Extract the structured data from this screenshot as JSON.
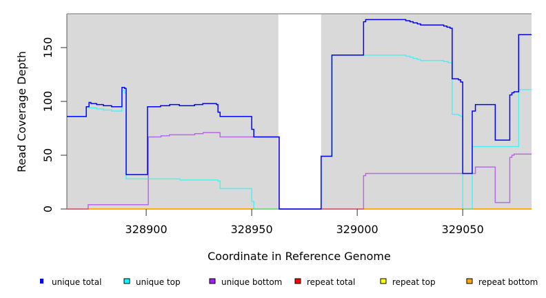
{
  "chart_data": {
    "type": "line",
    "subtype": "step",
    "xlabel": "Coordinate in Reference Genome",
    "ylabel": "Read Coverage Depth",
    "xlim": [
      328862.4,
      329082.6
    ],
    "ylim": [
      0,
      181.4
    ],
    "xticks": [
      328900,
      328950,
      329000,
      329050
    ],
    "yticks": [
      0,
      50,
      100,
      150
    ],
    "covered_regions": [
      [
        328862.4,
        328962.6
      ],
      [
        328982.9,
        329082.6
      ]
    ],
    "legend_position": "bottom",
    "series": [
      {
        "name": "unique total",
        "color": "#0000ff",
        "steps": [
          [
            328862.4,
            86
          ],
          [
            328871.6,
            95
          ],
          [
            328872.9,
            99
          ],
          [
            328873.8,
            98
          ],
          [
            328876.5,
            97
          ],
          [
            328879.7,
            96
          ],
          [
            328883.6,
            95
          ],
          [
            328888.5,
            113
          ],
          [
            328889.8,
            112
          ],
          [
            328890.5,
            32
          ],
          [
            328900.6,
            95
          ],
          [
            328906.8,
            96
          ],
          [
            328911.1,
            97
          ],
          [
            328915.7,
            96
          ],
          [
            328922.9,
            97
          ],
          [
            328926.8,
            98
          ],
          [
            328933.3,
            97
          ],
          [
            328934,
            90
          ],
          [
            328935,
            86
          ],
          [
            328950,
            74
          ],
          [
            328951,
            67
          ],
          [
            328963,
            0
          ],
          [
            328982.9,
            49
          ],
          [
            328988,
            143
          ],
          [
            329003,
            174
          ],
          [
            329004,
            176
          ],
          [
            329023,
            175
          ],
          [
            329025,
            174
          ],
          [
            329026.5,
            173
          ],
          [
            329028.5,
            172
          ],
          [
            329030,
            171
          ],
          [
            329041,
            170
          ],
          [
            329042.5,
            169
          ],
          [
            329044,
            168
          ],
          [
            329045,
            121
          ],
          [
            329048,
            120
          ],
          [
            329049,
            118
          ],
          [
            329050,
            33
          ],
          [
            329054.5,
            91
          ],
          [
            329056,
            97
          ],
          [
            329065.4,
            64
          ],
          [
            329072.3,
            106
          ],
          [
            329073.3,
            108
          ],
          [
            329074.3,
            109
          ],
          [
            329076.5,
            162
          ],
          [
            329082.6,
            162
          ]
        ]
      },
      {
        "name": "unique top",
        "color": "#00ffff",
        "steps": [
          [
            328862.4,
            86
          ],
          [
            328871.6,
            95
          ],
          [
            328872.9,
            94
          ],
          [
            328876.5,
            93
          ],
          [
            328879.7,
            92
          ],
          [
            328883.6,
            91
          ],
          [
            328888.5,
            110
          ],
          [
            328889.8,
            108
          ],
          [
            328890.5,
            28
          ],
          [
            328916,
            27
          ],
          [
            328934,
            26
          ],
          [
            328935,
            19
          ],
          [
            328950,
            7
          ],
          [
            328951,
            0
          ],
          [
            328982.9,
            49
          ],
          [
            328988,
            143
          ],
          [
            329023,
            142
          ],
          [
            329025,
            141
          ],
          [
            329026.5,
            140
          ],
          [
            329028.5,
            139
          ],
          [
            329030,
            138
          ],
          [
            329041,
            137
          ],
          [
            329043,
            136
          ],
          [
            329045,
            88
          ],
          [
            329048,
            87
          ],
          [
            329049,
            86
          ],
          [
            329050,
            0
          ],
          [
            329054.5,
            58
          ],
          [
            329076.5,
            111
          ],
          [
            329082.6,
            111
          ]
        ]
      },
      {
        "name": "unique bottom",
        "color": "#a020f0",
        "steps": [
          [
            328862.4,
            0
          ],
          [
            328872.5,
            4
          ],
          [
            328901,
            67
          ],
          [
            328907,
            68
          ],
          [
            328911,
            69
          ],
          [
            328923,
            70
          ],
          [
            328927,
            71
          ],
          [
            328935,
            67
          ],
          [
            328963,
            0
          ],
          [
            329003,
            31
          ],
          [
            329004,
            33
          ],
          [
            329054.5,
            33
          ],
          [
            329056,
            39
          ],
          [
            329065.4,
            6
          ],
          [
            329072.3,
            48
          ],
          [
            329073.3,
            50
          ],
          [
            329074.3,
            51
          ],
          [
            329082.6,
            51
          ]
        ]
      },
      {
        "name": "repeat total",
        "color": "#ff0000",
        "steps": [
          [
            328862.4,
            0
          ],
          [
            329082.6,
            0
          ]
        ]
      },
      {
        "name": "repeat top",
        "color": "#ffff00",
        "steps": [
          [
            328862.4,
            0
          ],
          [
            329082.6,
            0
          ]
        ]
      },
      {
        "name": "repeat bottom",
        "color": "#ffa500",
        "steps": [
          [
            328862.4,
            0
          ],
          [
            329082.6,
            0
          ]
        ]
      }
    ]
  }
}
